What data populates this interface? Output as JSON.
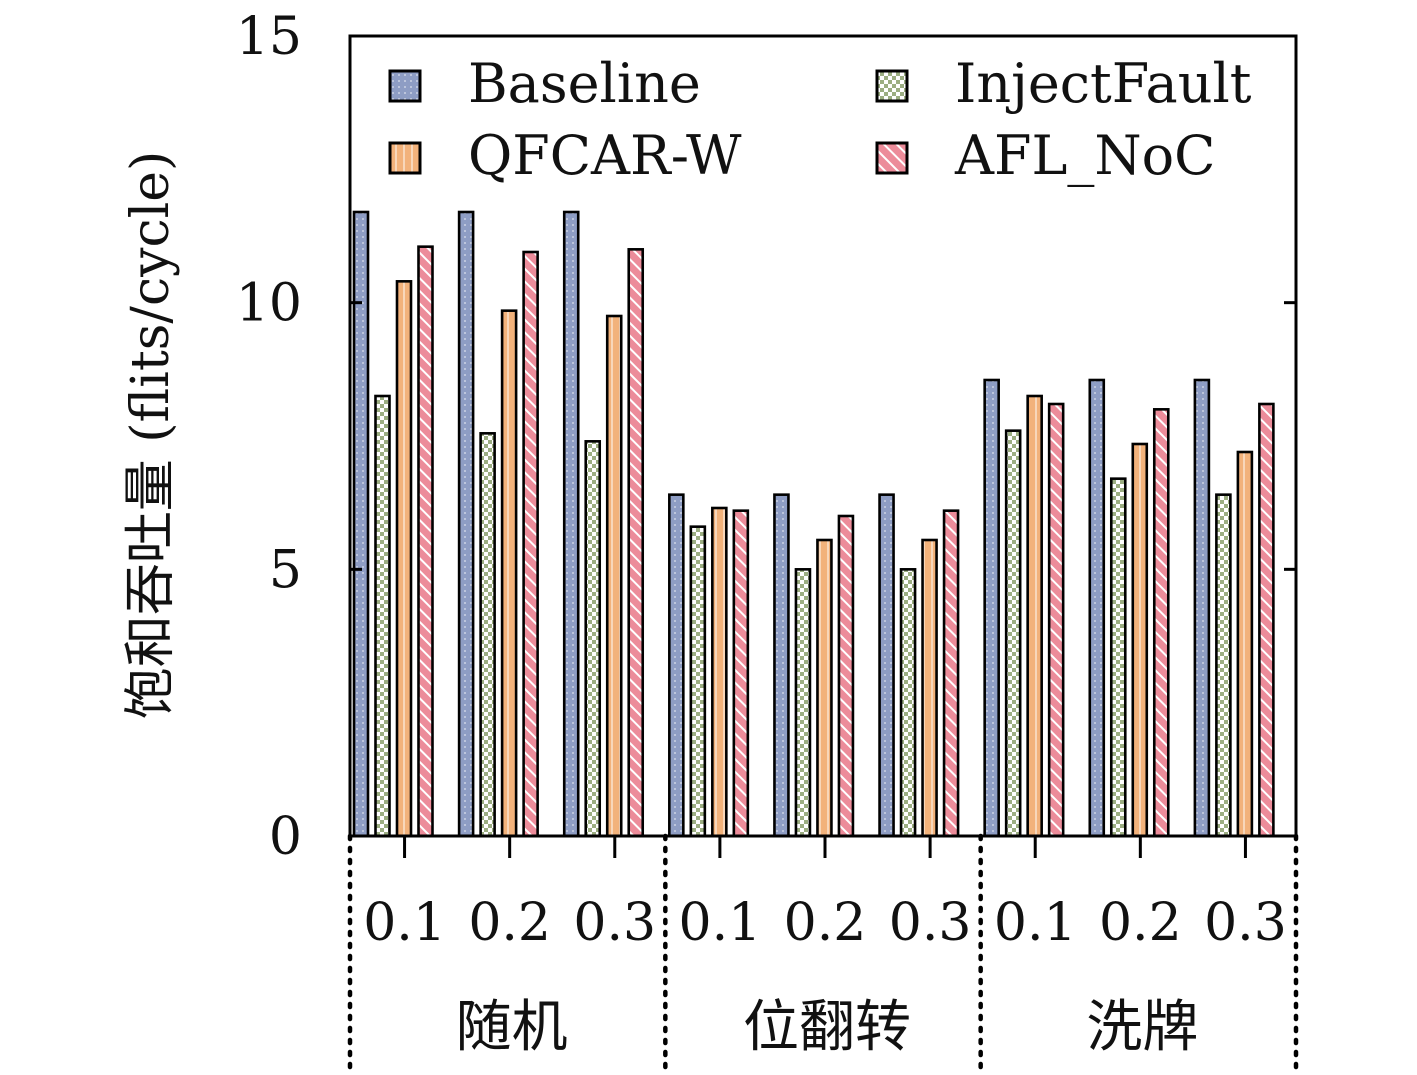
{
  "chart_data": {
    "type": "bar",
    "ylabel": "饱和吞吐量 (flits/cycle)",
    "ylim": [
      0,
      15
    ],
    "yticks": [
      "0",
      "5",
      "10",
      "15"
    ],
    "legend_position": "top",
    "groups": [
      {
        "label": "随机",
        "categories": [
          "0.1",
          "0.2",
          "0.3"
        ]
      },
      {
        "label": "位翻转",
        "categories": [
          "0.1",
          "0.2",
          "0.3"
        ]
      },
      {
        "label": "洗牌",
        "categories": [
          "0.1",
          "0.2",
          "0.3"
        ]
      }
    ],
    "series": [
      {
        "name": "Baseline",
        "color": "#8E9DC4",
        "values": [
          11.7,
          11.7,
          11.7,
          6.4,
          6.4,
          6.4,
          8.55,
          8.55,
          8.55
        ]
      },
      {
        "name": "InjectFault",
        "color": "#9CAE82",
        "values": [
          8.25,
          7.55,
          7.4,
          5.8,
          5.0,
          5.0,
          7.6,
          6.7,
          6.4
        ]
      },
      {
        "name": "QFCAR-W",
        "color": "#F2B27B",
        "values": [
          10.4,
          9.85,
          9.75,
          6.15,
          5.55,
          5.55,
          8.25,
          7.35,
          7.2
        ]
      },
      {
        "name": "AFL_NoC",
        "color": "#EC8C9A",
        "values": [
          11.05,
          10.95,
          11.0,
          6.1,
          6.0,
          6.1,
          8.1,
          8.0,
          8.1
        ]
      }
    ]
  }
}
